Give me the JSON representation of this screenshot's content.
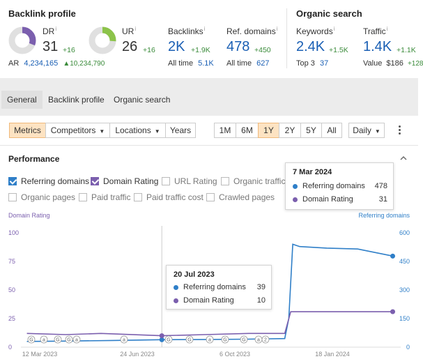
{
  "backlink_profile": {
    "title": "Backlink profile",
    "dr": {
      "label": "DR",
      "info": "i",
      "value": "31",
      "delta": "+16",
      "fill": 0.31,
      "color": "#7b5fae"
    },
    "ur": {
      "label": "UR",
      "info": "i",
      "value": "26",
      "delta": "+16",
      "fill": 0.26,
      "color": "#8cc34a"
    },
    "ar": {
      "label": "AR",
      "value": "4,234,165",
      "delta": "▲10,234,790"
    },
    "backlinks": {
      "label": "Backlinks",
      "info": "i",
      "value": "2K",
      "delta": "+1.9K",
      "alltime_label": "All time",
      "alltime_value": "5.1K"
    },
    "ref_domains": {
      "label": "Ref. domains",
      "info": "i",
      "value": "478",
      "delta": "+450",
      "alltime_label": "All time",
      "alltime_value": "627"
    }
  },
  "organic_search": {
    "title": "Organic search",
    "keywords": {
      "label": "Keywords",
      "info": "i",
      "value": "2.4K",
      "delta": "+1.5K",
      "sub_label": "Top 3",
      "sub_value": "37"
    },
    "traffic": {
      "label": "Traffic",
      "info": "i",
      "value": "1.4K",
      "delta": "+1.1K",
      "sub_label": "Value",
      "sub_value": "$186",
      "sub_delta": "+128"
    }
  },
  "tabs": [
    "General",
    "Backlink profile",
    "Organic search"
  ],
  "toolbar": {
    "metrics": "Metrics",
    "competitors": "Competitors",
    "locations": "Locations",
    "years": "Years",
    "ranges": [
      "1M",
      "6M",
      "1Y",
      "2Y",
      "5Y",
      "All"
    ],
    "selected_range": "1Y",
    "interval": "Daily"
  },
  "performance": {
    "title": "Performance",
    "checkboxes": [
      {
        "label": "Referring domains",
        "checked": true
      },
      {
        "label": "Domain Rating",
        "checked": true
      },
      {
        "label": "URL Rating",
        "checked": false
      },
      {
        "label": "Organic traffic",
        "checked": false
      },
      {
        "label": "Organic pages",
        "checked": false
      },
      {
        "label": "Paid traffic",
        "checked": false
      },
      {
        "label": "Paid traffic cost",
        "checked": false
      },
      {
        "label": "Crawled pages",
        "checked": false
      }
    ],
    "tooltip_top": {
      "date": "7 Mar 2024",
      "rows": [
        {
          "label": "Referring domains",
          "value": "478"
        },
        {
          "label": "Domain Rating",
          "value": "31"
        }
      ]
    },
    "tooltip_mid": {
      "date": "20 Jul 2023",
      "rows": [
        {
          "label": "Referring domains",
          "value": "39"
        },
        {
          "label": "Domain Rating",
          "value": "10"
        }
      ]
    }
  },
  "colors": {
    "blue": "#2f7fc8",
    "purple": "#7b5fae",
    "green": "#3a8b3a",
    "accent_orange": "#fde3c2"
  },
  "chart_data": {
    "type": "line",
    "left_axis_title": "Domain Rating",
    "right_axis_title": "Referring domains",
    "left_ticks": [
      "0",
      "25",
      "50",
      "75",
      "100"
    ],
    "right_ticks": [
      "0",
      "150",
      "300",
      "450",
      "600"
    ],
    "x_ticks": [
      "12 Mar 2023",
      "24 Jun 2023",
      "6 Oct 2023",
      "18 Jan 2024"
    ],
    "ylim_left": [
      0,
      100
    ],
    "ylim_right": [
      0,
      600
    ],
    "grid": false,
    "series": [
      {
        "name": "Referring domains",
        "axis": "right",
        "color": "#2f7fc8",
        "x": [
          "2023-03-07",
          "2023-04-15",
          "2023-06-01",
          "2023-07-20",
          "2023-09-01",
          "2023-10-15",
          "2023-11-20",
          "2023-11-24",
          "2023-11-28",
          "2023-12-05",
          "2024-01-01",
          "2024-02-01",
          "2024-03-07"
        ],
        "values": [
          30,
          32,
          35,
          39,
          40,
          42,
          45,
          150,
          540,
          528,
          520,
          515,
          478
        ]
      },
      {
        "name": "Domain Rating",
        "axis": "left",
        "color": "#7b5fae",
        "x": [
          "2023-03-07",
          "2023-04-15",
          "2023-05-20",
          "2023-07-20",
          "2023-09-01",
          "2023-10-15",
          "2023-11-20",
          "2023-11-26",
          "2024-01-01",
          "2024-03-07"
        ],
        "values": [
          12,
          11,
          12,
          10,
          11,
          12,
          12,
          31,
          31,
          31
        ]
      }
    ],
    "event_markers": [
      "G",
      "a",
      "G",
      "G",
      "a",
      "a",
      "G",
      "G",
      "a",
      "G",
      "G",
      "a",
      "2"
    ]
  }
}
